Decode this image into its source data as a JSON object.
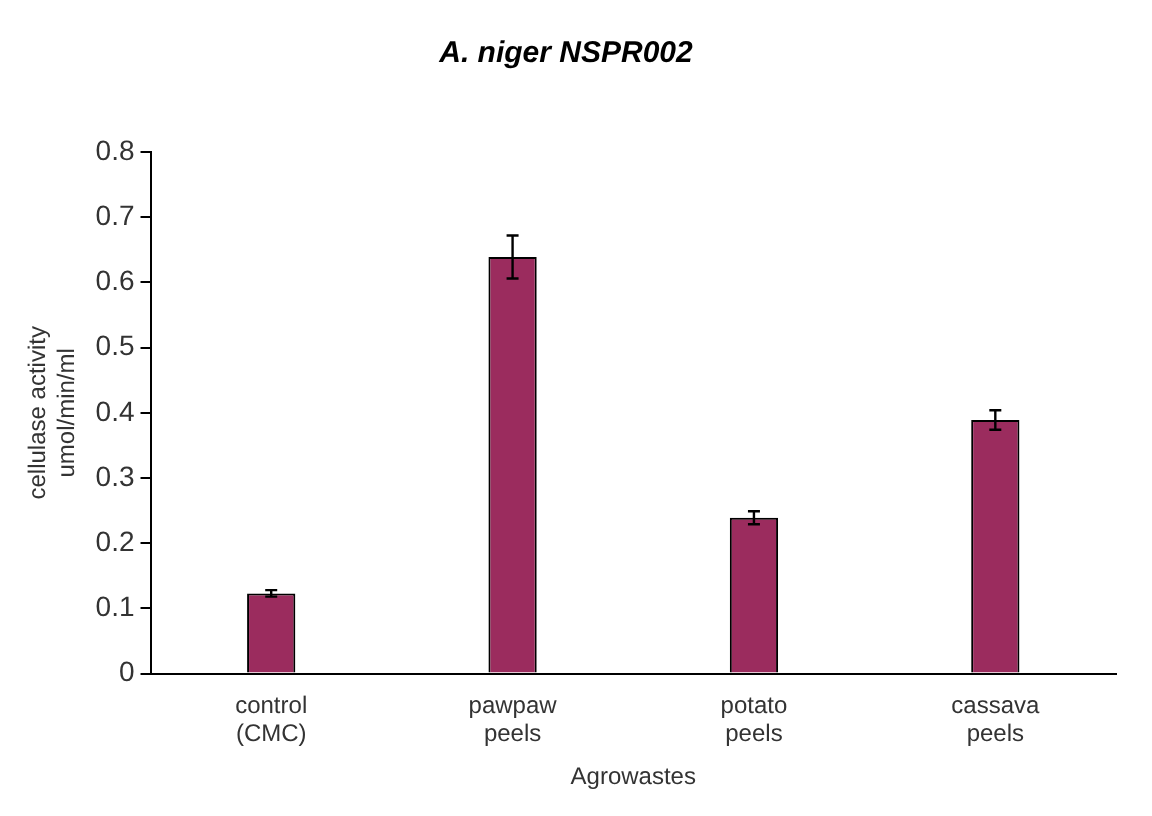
{
  "chart_data": {
    "type": "bar",
    "title": "A. niger NSPR002",
    "xlabel": "Agrowastes",
    "ylabel": "cellulase activity\numol/min/ml",
    "categories": [
      "control (CMC)",
      "pawpaw peels",
      "potato peels",
      "cassava peels"
    ],
    "values": [
      0.123,
      0.639,
      0.239,
      0.389
    ],
    "errors": [
      0.005,
      0.033,
      0.01,
      0.015
    ],
    "color": "#9b2c5e",
    "ylim": [
      0,
      0.8
    ],
    "yticks": [
      0,
      0.1,
      0.2,
      0.3,
      0.4,
      0.5,
      0.6,
      0.7,
      0.8
    ],
    "grid": false,
    "legend": false
  }
}
